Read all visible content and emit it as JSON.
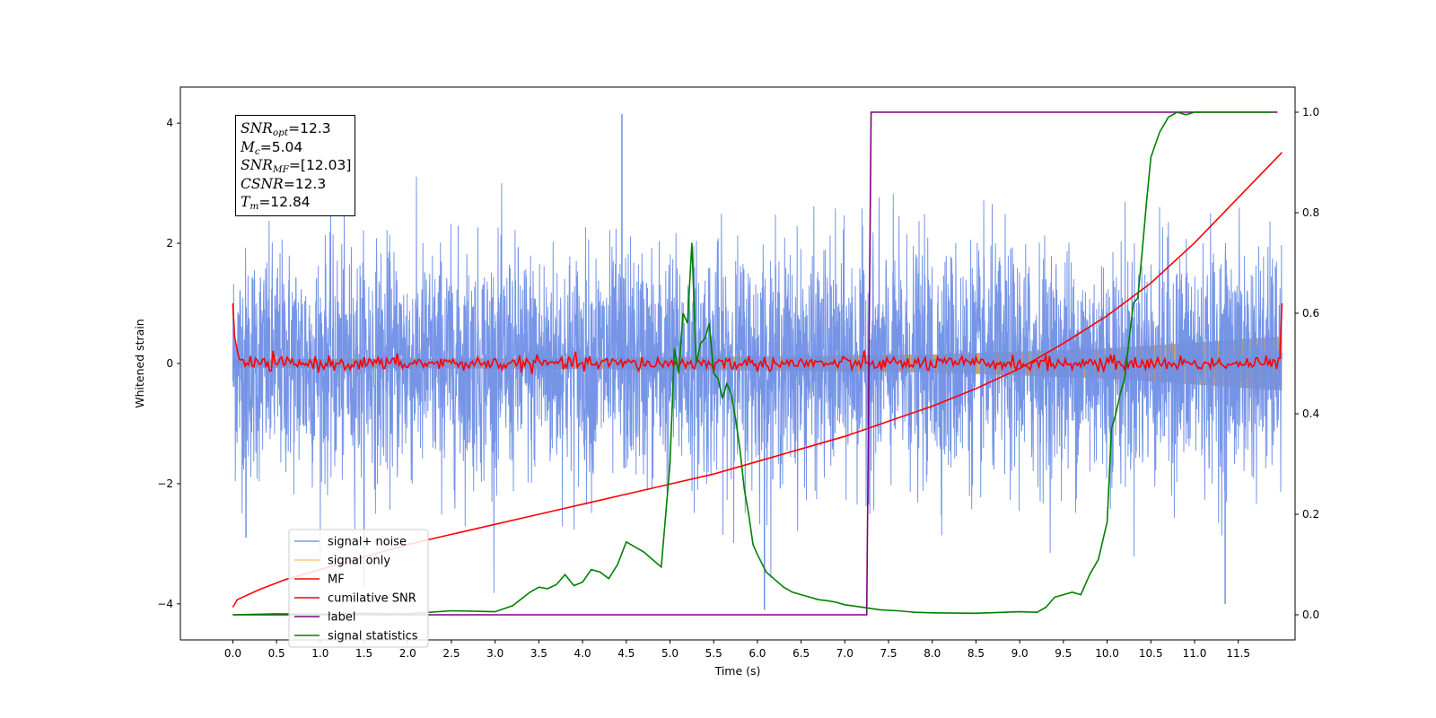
{
  "chart_data": {
    "type": "line",
    "xlabel": "Time (s)",
    "ylabel": "Whitened strain",
    "xlim": [
      -0.6,
      12.15
    ],
    "ylim": [
      -4.6,
      4.6
    ],
    "y2lim": [
      -0.05,
      1.05
    ],
    "x_ticks": [
      0.0,
      0.5,
      1.0,
      1.5,
      2.0,
      2.5,
      3.0,
      3.5,
      4.0,
      4.5,
      5.0,
      5.5,
      6.0,
      6.5,
      7.0,
      7.5,
      8.0,
      8.5,
      9.0,
      9.5,
      10.0,
      10.5,
      11.0,
      11.5
    ],
    "x_tick_labels": [
      "0.0",
      "0.5",
      "1.0",
      "1.5",
      "2.0",
      "2.5",
      "3.0",
      "3.5",
      "4.0",
      "4.5",
      "5.0",
      "5.5",
      "6.0",
      "6.5",
      "7.0",
      "7.5",
      "8.0",
      "8.5",
      "9.0",
      "9.5",
      "10.0",
      "10.5",
      "11.0",
      "11.5"
    ],
    "y_ticks": [
      -4,
      -2,
      0,
      2,
      4
    ],
    "y_tick_labels": [
      "−4",
      "−2",
      "0",
      "2",
      "4"
    ],
    "y2_ticks": [
      0.0,
      0.2,
      0.4,
      0.6,
      0.8,
      1.0
    ],
    "y2_tick_labels": [
      "0.0",
      "0.2",
      "0.4",
      "0.6",
      "0.8",
      "1.0"
    ],
    "legend_position": "lower-left",
    "series": [
      {
        "name": "signal+ noise",
        "color": "#6f8fe6",
        "axis": "left",
        "kind": "noise",
        "x_range": [
          0,
          12
        ],
        "amplitude_std": 0.95,
        "peak_max": 4.15,
        "peak_min": -4.1
      },
      {
        "name": "signal only",
        "color": "#f5c16a",
        "axis": "left",
        "kind": "chirp-envelope",
        "x_range": [
          0,
          12
        ],
        "envelope": [
          [
            0,
            0.07
          ],
          [
            4,
            0.09
          ],
          [
            8,
            0.15
          ],
          [
            10,
            0.25
          ],
          [
            12,
            0.45
          ]
        ]
      },
      {
        "name": "MF",
        "color": "#ff0000",
        "axis": "left",
        "kind": "noise",
        "x_range": [
          0,
          12
        ],
        "amplitude_std": 0.06,
        "edges": [
          [
            0,
            1.0
          ],
          [
            12,
            1.0
          ]
        ]
      },
      {
        "name": "cumilative SNR",
        "color": "#ff0000",
        "axis": "right",
        "x": [
          0,
          0.05,
          0.3,
          0.6,
          1.0,
          1.5,
          2.0,
          2.5,
          3.0,
          3.5,
          4.0,
          4.5,
          5.0,
          5.5,
          6.0,
          6.5,
          7.0,
          7.5,
          8.0,
          8.5,
          9.0,
          9.5,
          10.0,
          10.5,
          11.0,
          11.5,
          12.0
        ],
        "y": [
          0.015,
          0.03,
          0.05,
          0.07,
          0.09,
          0.115,
          0.14,
          0.16,
          0.18,
          0.2,
          0.22,
          0.24,
          0.26,
          0.28,
          0.305,
          0.33,
          0.355,
          0.385,
          0.415,
          0.45,
          0.49,
          0.54,
          0.595,
          0.66,
          0.74,
          0.83,
          0.92
        ]
      },
      {
        "name": "label",
        "color": "#800080",
        "axis": "right",
        "x": [
          0,
          7.25,
          7.3,
          11.95
        ],
        "y": [
          0,
          0,
          1,
          1
        ]
      },
      {
        "name": "signal statistics",
        "color": "#008000",
        "axis": "right",
        "x": [
          0,
          0.5,
          1.0,
          1.5,
          2.0,
          2.5,
          3.0,
          3.2,
          3.4,
          3.5,
          3.6,
          3.7,
          3.8,
          3.9,
          4.0,
          4.1,
          4.2,
          4.3,
          4.4,
          4.5,
          4.6,
          4.7,
          4.8,
          4.9,
          5.0,
          5.05,
          5.1,
          5.15,
          5.2,
          5.25,
          5.3,
          5.35,
          5.4,
          5.45,
          5.5,
          5.55,
          5.6,
          5.65,
          5.7,
          5.75,
          5.8,
          5.85,
          5.9,
          5.95,
          6.0,
          6.1,
          6.2,
          6.3,
          6.4,
          6.5,
          6.6,
          6.7,
          6.8,
          6.9,
          7.0,
          7.2,
          7.4,
          7.6,
          7.8,
          8.0,
          8.5,
          9.0,
          9.2,
          9.3,
          9.4,
          9.5,
          9.6,
          9.7,
          9.8,
          9.9,
          10.0,
          10.05,
          10.1,
          10.15,
          10.2,
          10.3,
          10.35,
          10.4,
          10.45,
          10.5,
          10.6,
          10.7,
          10.8,
          10.9,
          11.0,
          11.2,
          11.4,
          11.6,
          11.9
        ],
        "y": [
          0.0,
          0.002,
          0.001,
          0.003,
          0.002,
          0.008,
          0.006,
          0.018,
          0.045,
          0.055,
          0.052,
          0.06,
          0.08,
          0.058,
          0.065,
          0.09,
          0.085,
          0.072,
          0.1,
          0.145,
          0.135,
          0.125,
          0.11,
          0.095,
          0.3,
          0.53,
          0.48,
          0.6,
          0.58,
          0.74,
          0.5,
          0.54,
          0.55,
          0.58,
          0.48,
          0.47,
          0.43,
          0.46,
          0.44,
          0.39,
          0.33,
          0.25,
          0.2,
          0.14,
          0.12,
          0.085,
          0.07,
          0.055,
          0.045,
          0.04,
          0.035,
          0.03,
          0.028,
          0.025,
          0.02,
          0.015,
          0.01,
          0.008,
          0.005,
          0.004,
          0.003,
          0.006,
          0.005,
          0.015,
          0.035,
          0.04,
          0.045,
          0.04,
          0.08,
          0.11,
          0.185,
          0.37,
          0.4,
          0.44,
          0.47,
          0.62,
          0.63,
          0.72,
          0.82,
          0.91,
          0.96,
          0.99,
          1.0,
          0.995,
          1.0,
          1.0,
          1.0,
          1.0,
          1.0
        ]
      }
    ]
  },
  "stats_box": {
    "snr_opt_label": "SNR",
    "snr_opt_sub": "opt",
    "snr_opt_value": "=12.3",
    "mc_label": "M",
    "mc_sub": "c",
    "mc_value": "=5.04",
    "snr_mf_label": "SNR",
    "snr_mf_sub": "MF",
    "snr_mf_value": "=[12.03]",
    "csnr_label": "CSNR",
    "csnr_value": "=12.3",
    "tm_label": "T",
    "tm_sub": "m",
    "tm_value": "=12.84"
  }
}
